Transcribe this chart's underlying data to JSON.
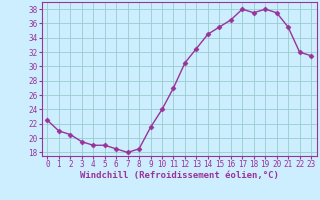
{
  "x": [
    0,
    1,
    2,
    3,
    4,
    5,
    6,
    7,
    8,
    9,
    10,
    11,
    12,
    13,
    14,
    15,
    16,
    17,
    18,
    19,
    20,
    21,
    22,
    23
  ],
  "y": [
    22.5,
    21.0,
    20.5,
    19.5,
    19.0,
    19.0,
    18.5,
    18.0,
    18.5,
    21.5,
    24.0,
    27.0,
    30.5,
    32.5,
    34.5,
    35.5,
    36.5,
    38.0,
    37.5,
    38.0,
    37.5,
    35.5,
    32.0,
    31.5
  ],
  "line_color": "#993399",
  "marker": "D",
  "markersize": 2.5,
  "linewidth": 1.0,
  "xlabel": "Windchill (Refroidissement éolien,°C)",
  "xlabel_fontsize": 6.5,
  "bg_color": "#cceeff",
  "grid_color": "#99cccc",
  "ylim": [
    17.5,
    39
  ],
  "yticks": [
    18,
    20,
    22,
    24,
    26,
    28,
    30,
    32,
    34,
    36,
    38
  ],
  "xticks": [
    0,
    1,
    2,
    3,
    4,
    5,
    6,
    7,
    8,
    9,
    10,
    11,
    12,
    13,
    14,
    15,
    16,
    17,
    18,
    19,
    20,
    21,
    22,
    23
  ],
  "tick_fontsize": 5.5,
  "spine_color": "#993399",
  "label_color": "#993399"
}
